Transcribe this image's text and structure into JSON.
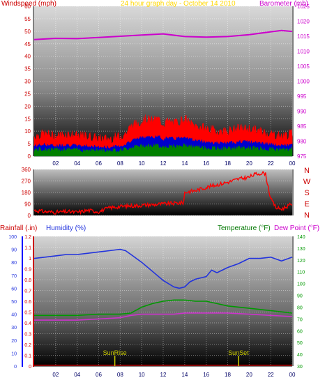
{
  "colors": {
    "windspeed": "#ff0000",
    "wind_blue": "#0000cc",
    "wind_green": "#008000",
    "barometer": "#cc00cc",
    "direction": "#ff0000",
    "rainfall": "#cc0000",
    "humidity": "#2233dd",
    "temperature": "#009900",
    "dewpoint": "#cc33cc",
    "subtitle": "#ffd700",
    "sun_marker": "#cccc00"
  },
  "chart_data": [
    {
      "type": "line",
      "title": "24 hour graph day - October 14 2010",
      "left_axis_label": "Windspeed (mph)",
      "right_axis_label": "Barometer (mb)",
      "x_ticks": [
        "02",
        "04",
        "06",
        "08",
        "10",
        "12",
        "14",
        "16",
        "18",
        "20",
        "22",
        "00"
      ],
      "left_ticks": [
        "0",
        "5",
        "10",
        "15",
        "20",
        "25",
        "30",
        "35",
        "40",
        "45",
        "50",
        "55",
        "60"
      ],
      "right_ticks": [
        "975",
        "980",
        "985",
        "990",
        "995",
        "1000",
        "1005",
        "1010",
        "1015",
        "1020",
        "1025"
      ],
      "ylim_left": [
        0,
        60
      ],
      "ylim_right": [
        975,
        1025
      ],
      "series": [
        {
          "name": "Windspeed",
          "axis": "left",
          "x": [
            0,
            1,
            2,
            3,
            4,
            5,
            6,
            7,
            8,
            8.5,
            9,
            9.5,
            10,
            10.5,
            11,
            11.5,
            12,
            12.5,
            13,
            13.5,
            14,
            14.5,
            15,
            16,
            17,
            18,
            19,
            20,
            21,
            22,
            23,
            24
          ],
          "values": [
            6,
            7,
            6,
            7,
            6,
            6,
            5,
            5,
            6,
            7,
            10,
            11,
            12,
            13,
            12,
            13,
            11,
            12,
            11,
            12,
            13,
            11,
            10,
            9,
            8,
            8,
            9,
            9,
            8,
            7,
            6,
            7
          ]
        },
        {
          "name": "Barometer",
          "axis": "right",
          "x": [
            0,
            2,
            4,
            6,
            8,
            10,
            12,
            14,
            16,
            18,
            20,
            22,
            23,
            24
          ],
          "values": [
            1013.9,
            1014.3,
            1014.2,
            1014.6,
            1015.0,
            1015.4,
            1015.8,
            1014.9,
            1014.7,
            1014.9,
            1015.5,
            1016.5,
            1016.9,
            1016.6
          ]
        }
      ]
    },
    {
      "type": "line",
      "title": "",
      "right_axis_label": "N W S E N",
      "compass_labels": [
        "N",
        "W",
        "S",
        "E",
        "N"
      ],
      "left_ticks": [
        "0",
        "90",
        "180",
        "270",
        "360"
      ],
      "x_ticks": [],
      "ylim": [
        0,
        360
      ],
      "series": [
        {
          "name": "Wind direction",
          "x": [
            0,
            1,
            2,
            3,
            4,
            5,
            6,
            7,
            8,
            9,
            10,
            11,
            12,
            13,
            13.9,
            14,
            15,
            16,
            17,
            18,
            19,
            20,
            20.5,
            21,
            21.5,
            22,
            22.5,
            23,
            24
          ],
          "values": [
            40,
            30,
            25,
            30,
            25,
            40,
            30,
            60,
            70,
            75,
            80,
            85,
            90,
            95,
            100,
            180,
            195,
            220,
            240,
            260,
            285,
            300,
            320,
            330,
            330,
            130,
            60,
            50,
            90
          ]
        }
      ]
    },
    {
      "type": "line",
      "title": "",
      "left_axis_label": "Rainfall (.in)",
      "left2_axis_label": "Humidity (%)",
      "right_axis_label": "Temperature (°F)",
      "right2_axis_label": "Dew Point (°F)",
      "x_ticks": [
        "02",
        "04",
        "06",
        "08",
        "10",
        "12",
        "14",
        "16",
        "18",
        "20",
        "22",
        "00"
      ],
      "humidity_ticks": [
        "0",
        "10",
        "20",
        "30",
        "40",
        "50",
        "60",
        "70",
        "80",
        "90",
        "100"
      ],
      "rain_ticks": [
        "0",
        "0.1",
        "0.2",
        "0.3",
        "0.4",
        "0.5",
        "0.6",
        "0.7",
        "0.8",
        "0.9",
        "1",
        "1.1",
        "1.2"
      ],
      "temp_ticks": [
        "30",
        "40",
        "50",
        "60",
        "70",
        "80",
        "90",
        "100",
        "110",
        "120",
        "130",
        "140"
      ],
      "ylim_humidity": [
        0,
        100
      ],
      "ylim_temp": [
        30,
        140
      ],
      "annotations": [
        "SunRise",
        "SunSet"
      ],
      "sunrise_hour": 7.5,
      "sunset_hour": 19,
      "series": [
        {
          "name": "Humidity",
          "axis": "humidity",
          "x": [
            0,
            1,
            2,
            3,
            4,
            5,
            6,
            7,
            8,
            8.5,
            9,
            10,
            11,
            12,
            13,
            13.5,
            14,
            14.5,
            15,
            16,
            16.5,
            17,
            17.5,
            18,
            19,
            20,
            21,
            22,
            23,
            24
          ],
          "values": [
            83,
            84,
            85,
            86,
            86,
            87,
            88,
            89,
            90,
            89,
            86,
            80,
            73,
            66,
            61,
            60,
            61,
            65,
            67,
            69,
            74,
            72,
            74,
            76,
            79,
            83,
            83,
            84,
            81,
            84
          ]
        },
        {
          "name": "Temperature",
          "axis": "temp",
          "x": [
            0,
            2,
            4,
            6,
            8,
            9,
            10,
            11,
            12,
            13,
            14,
            15,
            16,
            17,
            18,
            20,
            22,
            24
          ],
          "values": [
            73,
            73,
            73,
            74,
            74,
            75,
            80,
            83,
            85,
            86,
            86,
            85,
            85,
            83,
            81,
            79,
            77,
            75
          ]
        },
        {
          "name": "Dew Point",
          "axis": "temp",
          "x": [
            0,
            2,
            4,
            6,
            8,
            9,
            10,
            11,
            12,
            13,
            14,
            15,
            16,
            17,
            18,
            20,
            22,
            24
          ],
          "values": [
            69,
            69,
            69,
            70,
            71,
            73,
            74,
            74,
            74,
            74,
            75,
            75,
            75,
            75,
            75,
            74,
            73,
            72
          ]
        },
        {
          "name": "Rainfall",
          "axis": "rain",
          "x": [
            0,
            24
          ],
          "values": [
            0,
            0
          ]
        }
      ]
    }
  ]
}
